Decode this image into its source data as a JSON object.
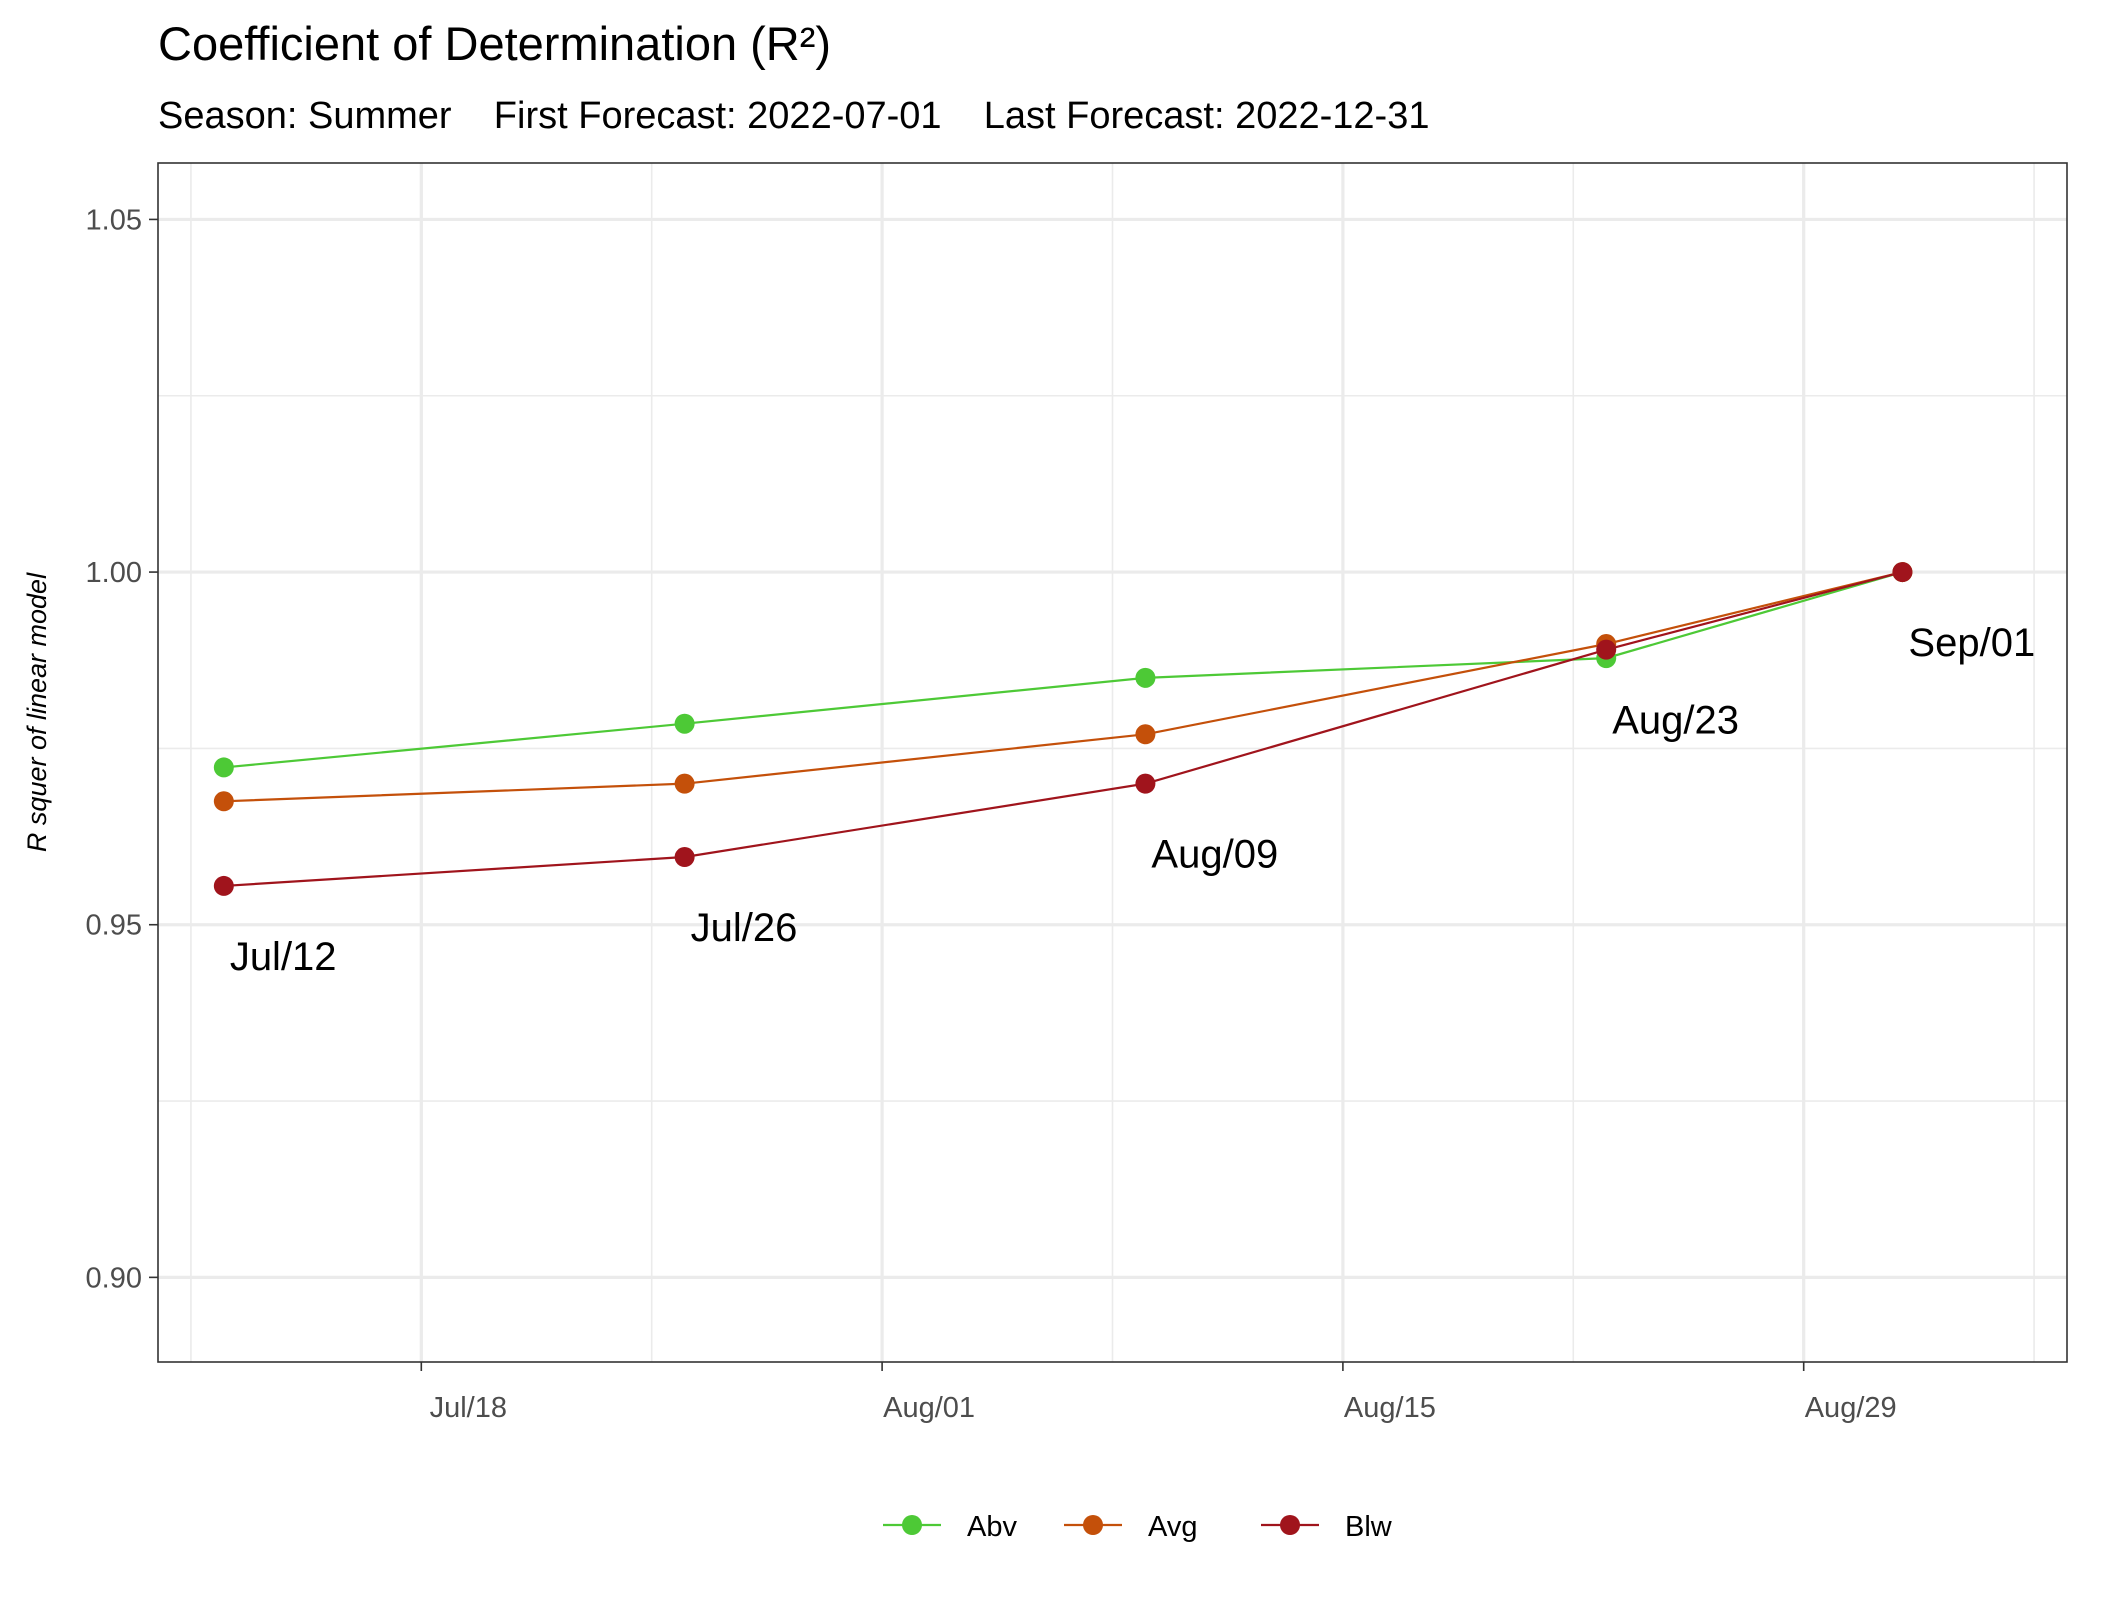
{
  "chart_data": {
    "type": "line",
    "title": "Coefficient of Determination (R²)",
    "subtitle": "Season: Summer    First Forecast: 2022-07-01    Last Forecast: 2022-12-31",
    "xlabel": "",
    "ylabel": "R squer of linear model",
    "x": [
      "2022-07-12",
      "2022-07-26",
      "2022-08-09",
      "2022-08-23",
      "2022-09-01"
    ],
    "xlim": [
      "2022-07-10",
      "2022-09-06"
    ],
    "ylim": [
      0.888,
      1.058
    ],
    "x_ticks": [
      {
        "date": "2022-07-18",
        "label": "Jul/18"
      },
      {
        "date": "2022-08-01",
        "label": "Aug/01"
      },
      {
        "date": "2022-08-15",
        "label": "Aug/15"
      },
      {
        "date": "2022-08-29",
        "label": "Aug/29"
      }
    ],
    "y_ticks": [
      {
        "value": 0.9,
        "label": "0.90"
      },
      {
        "value": 0.95,
        "label": "0.95"
      },
      {
        "value": 1.0,
        "label": "1.00"
      },
      {
        "value": 1.05,
        "label": "1.05"
      }
    ],
    "point_labels": [
      {
        "date": "2022-07-12",
        "value": 0.9555,
        "text": "Jul/12"
      },
      {
        "date": "2022-07-26",
        "value": 0.9596,
        "text": "Jul/26"
      },
      {
        "date": "2022-08-09",
        "value": 0.97,
        "text": "Aug/09"
      },
      {
        "date": "2022-08-23",
        "value": 0.989,
        "text": "Aug/23"
      },
      {
        "date": "2022-09-01",
        "value": 1.0,
        "text": "Sep/01"
      }
    ],
    "series": [
      {
        "name": "Abv",
        "color": "#4dc936",
        "values": [
          0.9723,
          0.9785,
          0.985,
          0.9878,
          1.0
        ]
      },
      {
        "name": "Avg",
        "color": "#c4500a",
        "values": [
          0.9675,
          0.97,
          0.977,
          0.9898,
          1.0
        ]
      },
      {
        "name": "Blw",
        "color": "#a0141c",
        "values": [
          0.9555,
          0.9596,
          0.97,
          0.989,
          1.0
        ]
      }
    ],
    "grid": true,
    "legend": "bottom"
  }
}
